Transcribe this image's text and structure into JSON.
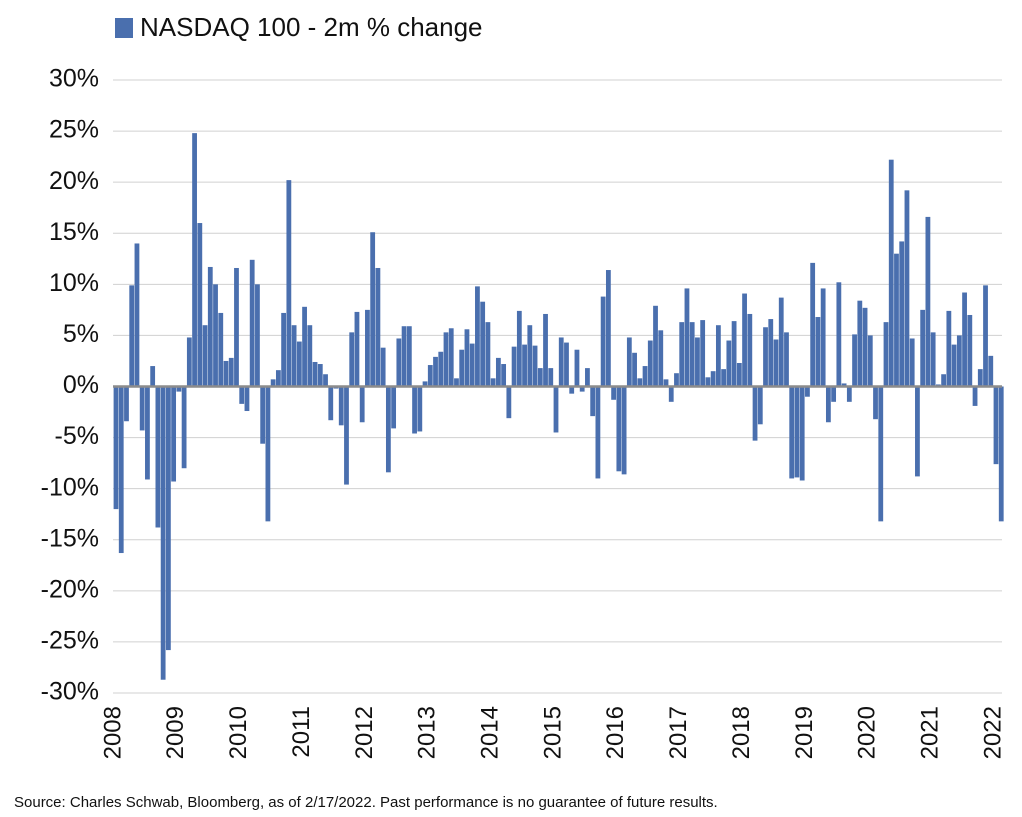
{
  "chart_data": {
    "type": "bar",
    "categories": [
      "2008",
      null,
      null,
      null,
      null,
      null,
      null,
      null,
      null,
      null,
      null,
      null,
      "2009",
      null,
      null,
      null,
      null,
      null,
      null,
      null,
      null,
      null,
      null,
      null,
      "2010",
      null,
      null,
      null,
      null,
      null,
      null,
      null,
      null,
      null,
      null,
      null,
      "2011",
      null,
      null,
      null,
      null,
      null,
      null,
      null,
      null,
      null,
      null,
      null,
      "2012",
      null,
      null,
      null,
      null,
      null,
      null,
      null,
      null,
      null,
      null,
      null,
      "2013",
      null,
      null,
      null,
      null,
      null,
      null,
      null,
      null,
      null,
      null,
      null,
      "2014",
      null,
      null,
      null,
      null,
      null,
      null,
      null,
      null,
      null,
      null,
      null,
      "2015",
      null,
      null,
      null,
      null,
      null,
      null,
      null,
      null,
      null,
      null,
      null,
      "2016",
      null,
      null,
      null,
      null,
      null,
      null,
      null,
      null,
      null,
      null,
      null,
      "2017",
      null,
      null,
      null,
      null,
      null,
      null,
      null,
      null,
      null,
      null,
      null,
      "2018",
      null,
      null,
      null,
      null,
      null,
      null,
      null,
      null,
      null,
      null,
      null,
      "2019",
      null,
      null,
      null,
      null,
      null,
      null,
      null,
      null,
      null,
      null,
      null,
      "2020",
      null,
      null,
      null,
      null,
      null,
      null,
      null,
      null,
      null,
      null,
      null,
      "2021",
      null,
      null,
      null,
      null,
      null,
      null,
      null,
      null,
      null,
      null,
      null,
      "2022",
      null
    ],
    "series": [
      {
        "name": "NASDAQ 100 - 2m % change",
        "color": "#4a6fae",
        "values": [
          -12,
          -16.3,
          -3.4,
          9.9,
          14,
          -4.3,
          -9.1,
          2,
          -13.8,
          -28.7,
          -25.8,
          -9.3,
          -0.5,
          -8,
          4.8,
          24.8,
          16,
          6,
          11.7,
          10,
          7.2,
          2.5,
          2.8,
          11.6,
          -1.7,
          -2.4,
          12.4,
          10,
          -5.6,
          -13.2,
          0.7,
          1.6,
          7.2,
          20.2,
          6,
          4.4,
          7.8,
          6,
          2.4,
          2.2,
          1.2,
          -3.3,
          -0.2,
          -3.8,
          -9.6,
          5.3,
          7.3,
          -3.5,
          7.5,
          15.1,
          11.6,
          3.8,
          -8.4,
          -4.1,
          4.7,
          5.9,
          5.9,
          -4.6,
          -4.4,
          0.5,
          2.1,
          2.9,
          3.4,
          5.3,
          5.7,
          0.8,
          3.6,
          5.6,
          4.2,
          9.8,
          8.3,
          6.3,
          0.8,
          2.8,
          2.2,
          -3.1,
          3.9,
          7.4,
          4.1,
          6,
          4,
          1.8,
          7.1,
          1.8,
          -4.5,
          4.8,
          4.3,
          -0.7,
          3.6,
          -0.5,
          1.8,
          -2.9,
          -9,
          8.8,
          11.4,
          -1.3,
          -8.3,
          -8.6,
          4.8,
          3.3,
          0.8,
          2,
          4.5,
          7.9,
          5.5,
          0.7,
          -1.5,
          1.3,
          6.3,
          9.6,
          6.3,
          4.8,
          6.5,
          0.9,
          1.5,
          6,
          1.7,
          4.5,
          6.4,
          2.3,
          9.1,
          7.1,
          -5.3,
          -3.7,
          5.8,
          6.6,
          4.6,
          8.7,
          5.3,
          -9,
          -8.9,
          -9.2,
          -1,
          12.1,
          6.8,
          9.6,
          -3.5,
          -1.5,
          10.2,
          0.3,
          -1.5,
          5.1,
          8.4,
          7.7,
          5,
          -3.2,
          -13.2,
          6.3,
          22.2,
          13,
          14.2,
          19.2,
          4.7,
          -8.8,
          7.5,
          16.6,
          5.3,
          0.2,
          1.2,
          7.4,
          4.1,
          5,
          9.2,
          7,
          -1.9,
          1.7,
          9.9,
          3,
          -7.6,
          -13.2
        ]
      }
    ],
    "ylim": [
      -30,
      30
    ],
    "yticks": [
      {
        "value": -30,
        "label": "-30%"
      },
      {
        "value": -25,
        "label": "-25%"
      },
      {
        "value": -20,
        "label": "-20%"
      },
      {
        "value": -15,
        "label": "-15%"
      },
      {
        "value": -10,
        "label": "-10%"
      },
      {
        "value": -5,
        "label": "-5%"
      },
      {
        "value": 0,
        "label": "0%"
      },
      {
        "value": 5,
        "label": "5%"
      },
      {
        "value": 10,
        "label": "10%"
      },
      {
        "value": 15,
        "label": "15%"
      },
      {
        "value": 20,
        "label": "20%"
      },
      {
        "value": 25,
        "label": "25%"
      },
      {
        "value": 30,
        "label": "30%"
      }
    ],
    "grid": true,
    "source": "Source: Charles Schwab, Bloomberg, as of 2/17/2022.  Past performance is no guarantee of future results."
  }
}
